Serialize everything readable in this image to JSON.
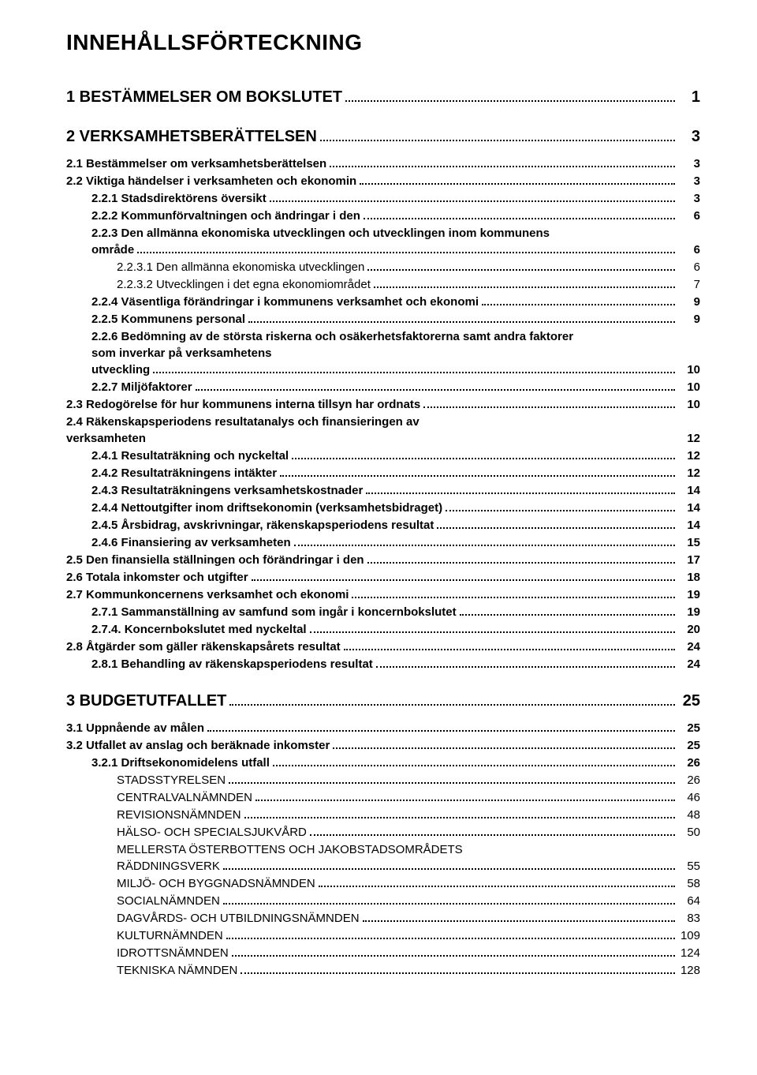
{
  "doc": {
    "title": "INNEHÅLLSFÖRTECKNING",
    "text_color": "#000000",
    "background_color": "#ffffff",
    "title_fontsize": 28,
    "body_fontsize": 15,
    "level0_fontsize": 20,
    "font_family": "Lucida Sans"
  },
  "toc": [
    {
      "level": 0,
      "label": "1 BESTÄMMELSER OM BOKSLUTET",
      "page": "1"
    },
    {
      "level": 0,
      "label": "2 VERKSAMHETSBERÄTTELSEN",
      "page": "3"
    },
    {
      "level": 1,
      "label": "2.1 Bestämmelser om verksamhetsberättelsen",
      "page": "3"
    },
    {
      "level": 1,
      "label": "2.2 Viktiga händelser i verksamheten och ekonomin",
      "page": "3"
    },
    {
      "level": 2,
      "label": "2.2.1 Stadsdirektörens översikt",
      "page": "3"
    },
    {
      "level": 2,
      "label": "2.2.2 Kommunförvaltningen och ändringar i den",
      "page": "6"
    },
    {
      "level": 2,
      "label": "2.2.3 Den allmänna ekonomiska utvecklingen och utvecklingen inom kommunens område",
      "page": "6",
      "wrap": true
    },
    {
      "level": 3,
      "label": "2.2.3.1 Den allmänna ekonomiska utvecklingen",
      "page": "6"
    },
    {
      "level": 3,
      "label": "2.2.3.2 Utvecklingen i det egna ekonomiområdet",
      "page": "7"
    },
    {
      "level": 2,
      "label": "2.2.4 Väsentliga förändringar i kommunens verksamhet och ekonomi",
      "page": "9"
    },
    {
      "level": 2,
      "label": "2.2.5 Kommunens personal",
      "page": "9"
    },
    {
      "level": 2,
      "label": "2.2.6 Bedömning av de största riskerna och osäkerhetsfaktorerna samt andra faktorer som inverkar på verksamhetens utveckling",
      "page": "10",
      "wrap": true
    },
    {
      "level": 2,
      "label": "2.2.7 Miljöfaktorer",
      "page": "10"
    },
    {
      "level": 1,
      "label": "2.3 Redogörelse för hur kommunens interna tillsyn har ordnats",
      "page": "10"
    },
    {
      "level": 1,
      "label": "2.4 Räkenskapsperiodens resultatanalys och finansieringen av verksamheten",
      "page": "12",
      "wrap": true,
      "nodots": true
    },
    {
      "level": 2,
      "label": "2.4.1 Resultaträkning och nyckeltal",
      "page": "12"
    },
    {
      "level": 2,
      "label": "2.4.2 Resultaträkningens intäkter",
      "page": "12"
    },
    {
      "level": 2,
      "label": "2.4.3 Resultaträkningens verksamhetskostnader",
      "page": "14"
    },
    {
      "level": 2,
      "label": "2.4.4 Nettoutgifter inom driftsekonomin (verksamhetsbidraget)",
      "page": "14"
    },
    {
      "level": 2,
      "label": "2.4.5 Årsbidrag, avskrivningar, räkenskapsperiodens resultat",
      "page": "14"
    },
    {
      "level": 2,
      "label": "2.4.6 Finansiering av verksamheten",
      "page": "15"
    },
    {
      "level": 1,
      "label": "2.5 Den finansiella ställningen och förändringar i den",
      "page": "17"
    },
    {
      "level": 1,
      "label": "2.6 Totala inkomster och utgifter",
      "page": "18"
    },
    {
      "level": 1,
      "label": "2.7 Kommunkoncernens verksamhet och ekonomi",
      "page": "19"
    },
    {
      "level": 2,
      "label": "2.7.1 Sammanställning av samfund som ingår i koncernbokslutet",
      "page": "19"
    },
    {
      "level": 2,
      "label": "2.7.4. Koncernbokslutet med nyckeltal",
      "page": "20"
    },
    {
      "level": 1,
      "label": "2.8 Åtgärder som gäller räkenskapsårets resultat",
      "page": "24"
    },
    {
      "level": 2,
      "label": "2.8.1 Behandling av räkenskapsperiodens resultat",
      "page": "24"
    },
    {
      "level": 0,
      "label": "3 BUDGETUTFALLET",
      "page": "25"
    },
    {
      "level": 1,
      "label": "3.1 Uppnående av målen",
      "page": "25"
    },
    {
      "level": 1,
      "label": "3.2 Utfallet av anslag och beräknade inkomster",
      "page": "25"
    },
    {
      "level": 2,
      "label": "3.2.1 Driftsekonomidelens utfall",
      "page": "26"
    },
    {
      "level": 4,
      "label": "STADSSTYRELSEN",
      "page": "26"
    },
    {
      "level": 4,
      "label": "CENTRALVALNÄMNDEN",
      "page": "46"
    },
    {
      "level": 4,
      "label": "REVISIONSNÄMNDEN",
      "page": "48"
    },
    {
      "level": 4,
      "label": "HÄLSO- OCH SPECIALSJUKVÅRD",
      "page": "50"
    },
    {
      "level": 4,
      "label": "MELLERSTA ÖSTERBOTTENS OCH JAKOBSTADSOMRÅDETS RÄDDNINGSVERK",
      "page": "55",
      "wrap": true
    },
    {
      "level": 4,
      "label": "MILJÖ- OCH BYGGNADSNÄMNDEN",
      "page": "58"
    },
    {
      "level": 4,
      "label": "SOCIALNÄMNDEN",
      "page": "64"
    },
    {
      "level": 4,
      "label": "DAGVÅRDS- OCH UTBILDNINGSNÄMNDEN",
      "page": "83"
    },
    {
      "level": 4,
      "label": "KULTURNÄMNDEN",
      "page": "109"
    },
    {
      "level": 4,
      "label": "IDROTTSNÄMNDEN",
      "page": "124"
    },
    {
      "level": 4,
      "label": "TEKNISKA NÄMNDEN",
      "page": "128"
    }
  ]
}
